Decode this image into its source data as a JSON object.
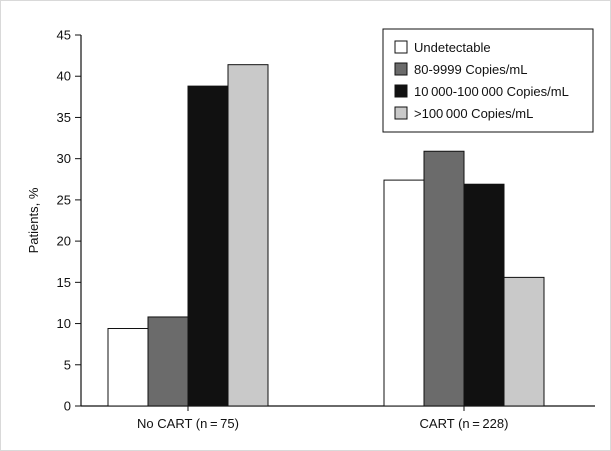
{
  "chart_data": {
    "type": "bar",
    "title": "",
    "xlabel": "",
    "ylabel": "Patients, %",
    "ylim": [
      0,
      45
    ],
    "yticks": [
      0,
      5,
      10,
      15,
      20,
      25,
      30,
      35,
      40,
      45
    ],
    "grid": false,
    "legend_position": "top-right",
    "categories": [
      "No CART (n = 75)",
      "CART (n = 228)"
    ],
    "series": [
      {
        "name": "Undetectable",
        "color": "#ffffff",
        "values": [
          9.4,
          27.4
        ]
      },
      {
        "name": "80-9999 Copies/mL",
        "color": "#6b6b6b",
        "values": [
          10.8,
          30.9
        ]
      },
      {
        "name": "10 000-100 000 Copies/mL",
        "color": "#111111",
        "values": [
          38.8,
          26.9
        ]
      },
      {
        "name": ">100 000 Copies/mL",
        "color": "#c9c9c9",
        "values": [
          41.4,
          15.6
        ]
      }
    ]
  }
}
